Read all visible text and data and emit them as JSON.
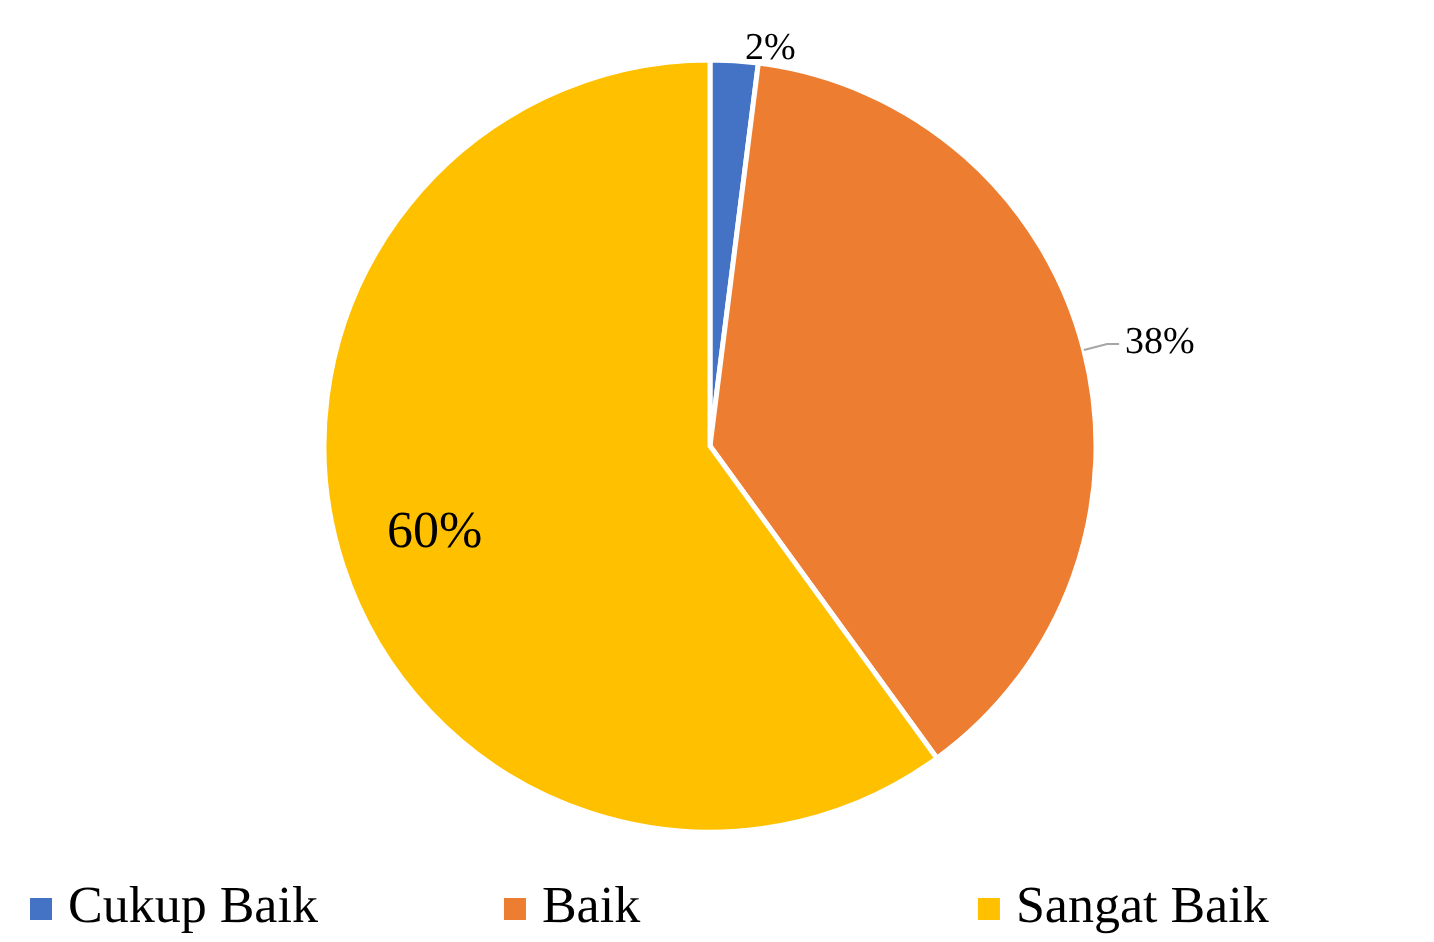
{
  "chart_data": {
    "type": "pie",
    "categories": [
      "Cukup Baik",
      "Baik",
      "Sangat Baik"
    ],
    "values": [
      2,
      38,
      60
    ],
    "colors": [
      "#4472c4",
      "#ed7d31",
      "#ffc000"
    ],
    "value_labels": [
      "2%",
      "38%",
      "60%"
    ],
    "legend": "bottom"
  }
}
